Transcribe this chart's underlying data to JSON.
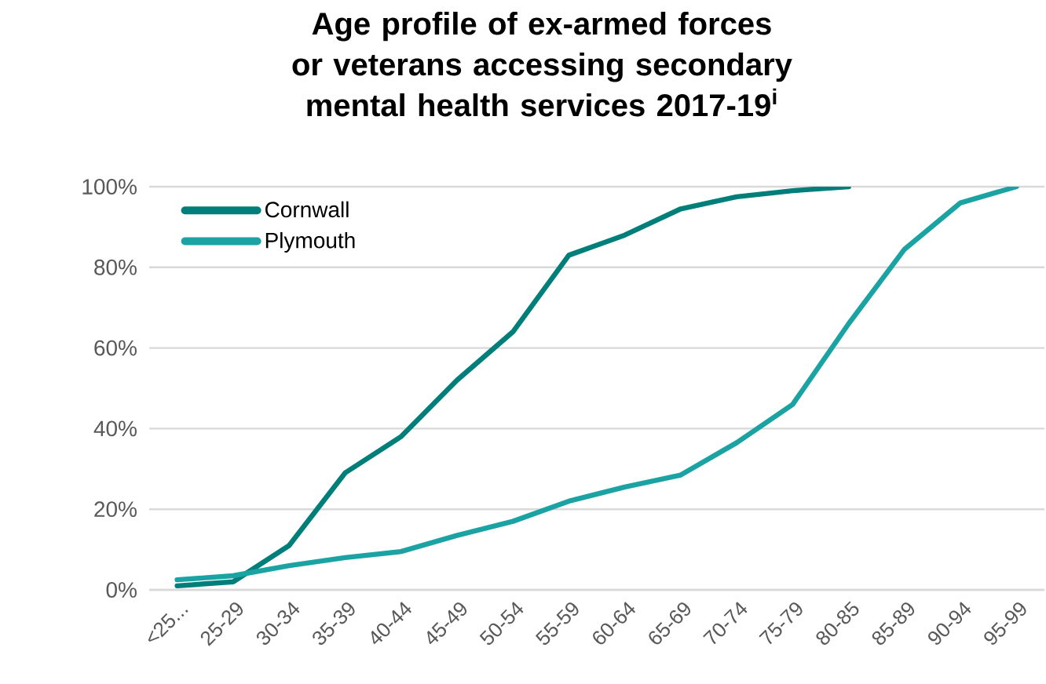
{
  "chart_data": {
    "type": "line",
    "title": "Age profile of ex-armed forces or veterans accessing secondary mental health services 2017-19$^{i}$",
    "categories": [
      "<25...",
      "25-29",
      "30-34",
      "35-39",
      "40-44",
      "45-49",
      "50-54",
      "55-59",
      "60-64",
      "65-69",
      "70-74",
      "75-79",
      "80-85",
      "85-89",
      "90-94",
      "95-99"
    ],
    "series": [
      {
        "name": "Cornwall",
        "color": "#007f7a",
        "values": [
          1,
          2,
          11,
          29,
          38,
          52,
          64,
          83,
          88,
          94.5,
          97.5,
          99,
          100,
          null,
          null,
          null
        ]
      },
      {
        "name": "Plymouth",
        "color": "#1ba3a3",
        "values": [
          2.5,
          3.5,
          6,
          8,
          9.5,
          13.5,
          17,
          22,
          25.5,
          28.5,
          36.5,
          46,
          66,
          84.5,
          96,
          100
        ]
      }
    ],
    "ylim": [
      0,
      100
    ],
    "yticks": [
      {
        "value": 0,
        "label": "0%"
      },
      {
        "value": 20,
        "label": "20%"
      },
      {
        "value": 40,
        "label": "40%"
      },
      {
        "value": 60,
        "label": "60%"
      },
      {
        "value": 80,
        "label": "80%"
      },
      {
        "value": 100,
        "label": "100%"
      }
    ],
    "grid": "y",
    "legend": "top left",
    "marker": "none",
    "line_style": "solid"
  }
}
